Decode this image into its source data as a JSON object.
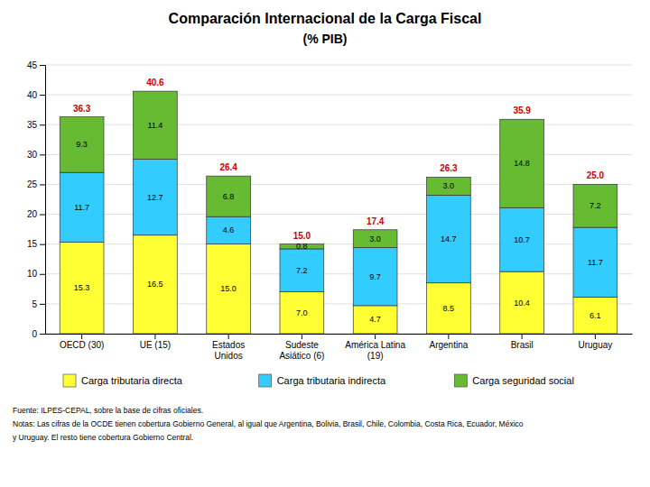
{
  "chart_data": {
    "type": "bar",
    "stacked": true,
    "data_labels": true,
    "grid": true,
    "legend": "bottom",
    "title": "Comparación Internacional de la Carga Fiscal",
    "subtitle": "(% PIB)",
    "categories": [
      "OECD (30)",
      "UE (15)",
      "Estados\nUnidos",
      "Sudeste\nAsiático (6)",
      "América Latina\n(19)",
      "Argentina",
      "Brasil",
      "Uruguay"
    ],
    "series": [
      {
        "name": "Carga tributaria directa",
        "color": "#ffff33",
        "values": [
          15.3,
          16.5,
          15.0,
          7.0,
          4.7,
          8.5,
          10.4,
          6.1
        ],
        "value_labels": [
          "15.3",
          "16.5",
          "15.0",
          "7.0",
          "4.7",
          "8.5",
          "10.4",
          "6.1"
        ]
      },
      {
        "name": "Carga tributaria indirecta",
        "color": "#33ccff",
        "values": [
          11.7,
          12.7,
          4.6,
          7.2,
          9.7,
          14.7,
          10.7,
          11.7
        ],
        "value_labels": [
          "11.7",
          "12.7",
          "4.6",
          "7.2",
          "9.7",
          "14.7",
          "10.7",
          "11.7"
        ]
      },
      {
        "name": "Carga seguridad social",
        "color": "#66bb33",
        "values": [
          9.3,
          11.4,
          6.8,
          0.8,
          3.0,
          3.0,
          14.8,
          7.2
        ],
        "value_labels": [
          "9.3",
          "11.4",
          "6.8",
          "0.8",
          "3.0",
          "3.0",
          "14.8",
          "7.2"
        ]
      }
    ],
    "totals": {
      "color": "#cc0000",
      "values": [
        36.3,
        40.6,
        26.4,
        15.0,
        17.4,
        26.3,
        35.9,
        25.0
      ],
      "value_labels": [
        "36.3",
        "40.6",
        "26.4",
        "15.0",
        "17.4",
        "26.3",
        "35.9",
        "25.0"
      ]
    },
    "ylim": [
      0,
      45
    ],
    "yticks": [
      0,
      5,
      10,
      15,
      20,
      25,
      30,
      35,
      40,
      45
    ],
    "footnotes": [
      "Fuente: ILPES-CEPAL, sobre la base de cifras oficiales.",
      "Notas: Las cifras de la OCDE tienen cobertura Gobierno General, al igual que Argentina, Bolivia, Brasil, Chile, Colombia, Costa Rica, Ecuador, México",
      "y Uruguay. El resto tiene cobertura Gobierno Central."
    ]
  }
}
